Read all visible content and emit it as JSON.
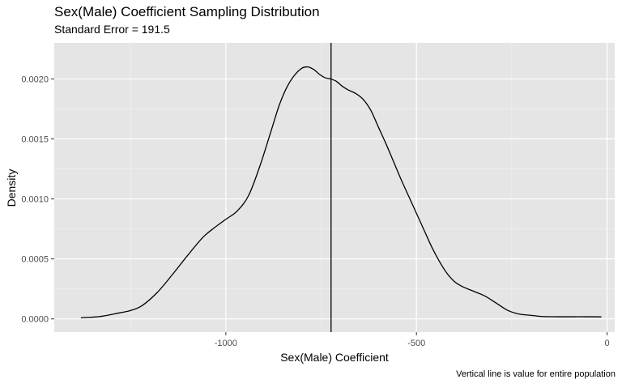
{
  "chart_data": {
    "type": "line",
    "title": "Sex(Male) Coefficient Sampling Distribution",
    "subtitle": "Standard Error = 191.5",
    "xlabel": "Sex(Male) Coefficient",
    "ylabel": "Density",
    "caption": "Vertical line is value for entire population",
    "xlim": [
      -1450,
      20
    ],
    "ylim": [
      -0.00011,
      0.0023
    ],
    "x_ticks": [
      -1000,
      -500,
      0
    ],
    "x_tick_labels": [
      "-1000",
      "-500",
      "0"
    ],
    "y_ticks": [
      0.0,
      0.0005,
      0.001,
      0.0015,
      0.002
    ],
    "y_tick_labels": [
      "0.0000",
      "0.0005",
      "0.0010",
      "0.0015",
      "0.0020"
    ],
    "grid": true,
    "vertical_line": {
      "x": -724
    },
    "series": [
      {
        "x": [
          -1380,
          -1330,
          -1280,
          -1250,
          -1220,
          -1180,
          -1140,
          -1100,
          -1060,
          -1030,
          -1000,
          -970,
          -940,
          -910,
          -880,
          -860,
          -840,
          -820,
          -800,
          -785,
          -770,
          -755,
          -740,
          -725,
          -710,
          -695,
          -680,
          -660,
          -640,
          -620,
          -600,
          -580,
          -560,
          -540,
          -520,
          -500,
          -480,
          -460,
          -440,
          -420,
          -400,
          -380,
          -350,
          -320,
          -290,
          -260,
          -230,
          -200,
          -170,
          -130,
          -90,
          -50,
          -15
        ],
        "y": [
          1e-05,
          2e-05,
          5e-05,
          7e-05,
          0.00011,
          0.00022,
          0.00037,
          0.00053,
          0.00068,
          0.00076,
          0.00083,
          0.0009,
          0.00103,
          0.00128,
          0.00158,
          0.00178,
          0.00193,
          0.00203,
          0.00209,
          0.0021,
          0.00208,
          0.00204,
          0.00201,
          0.002,
          0.00198,
          0.00194,
          0.00191,
          0.00188,
          0.00183,
          0.00174,
          0.0016,
          0.00146,
          0.00131,
          0.00116,
          0.00102,
          0.00088,
          0.00074,
          0.0006,
          0.00048,
          0.00038,
          0.00031,
          0.00027,
          0.00023,
          0.00019,
          0.00013,
          7e-05,
          4e-05,
          3e-05,
          2e-05,
          1.8e-05,
          1.8e-05,
          1.8e-05,
          1.7e-05
        ]
      }
    ]
  }
}
